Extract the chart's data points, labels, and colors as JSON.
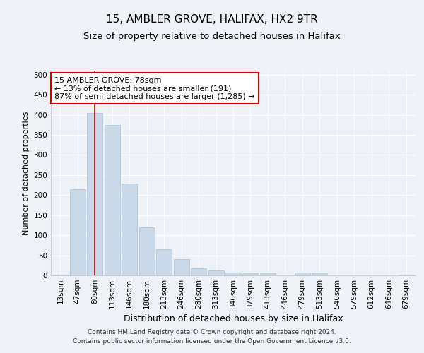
{
  "title1": "15, AMBLER GROVE, HALIFAX, HX2 9TR",
  "title2": "Size of property relative to detached houses in Halifax",
  "xlabel": "Distribution of detached houses by size in Halifax",
  "ylabel": "Number of detached properties",
  "categories": [
    "13sqm",
    "47sqm",
    "80sqm",
    "113sqm",
    "146sqm",
    "180sqm",
    "213sqm",
    "246sqm",
    "280sqm",
    "313sqm",
    "346sqm",
    "379sqm",
    "413sqm",
    "446sqm",
    "479sqm",
    "513sqm",
    "546sqm",
    "579sqm",
    "612sqm",
    "646sqm",
    "679sqm"
  ],
  "values": [
    2,
    215,
    405,
    375,
    228,
    120,
    65,
    40,
    18,
    12,
    7,
    5,
    5,
    0,
    7,
    6,
    0,
    0,
    0,
    0,
    2
  ],
  "bar_color": "#c9d9e8",
  "bar_edge_color": "#a8c0d6",
  "property_line_x": 2,
  "property_line_color": "#cc0000",
  "annotation_line1": "15 AMBLER GROVE: 78sqm",
  "annotation_line2": "← 13% of detached houses are smaller (191)",
  "annotation_line3": "87% of semi-detached houses are larger (1,285) →",
  "annotation_box_color": "#ffffff",
  "annotation_box_edge_color": "#cc0000",
  "ylim": [
    0,
    510
  ],
  "yticks": [
    0,
    50,
    100,
    150,
    200,
    250,
    300,
    350,
    400,
    450,
    500
  ],
  "background_color": "#eef2f7",
  "plot_background": "#eef2f7",
  "footer_line1": "Contains HM Land Registry data © Crown copyright and database right 2024.",
  "footer_line2": "Contains public sector information licensed under the Open Government Licence v3.0.",
  "title1_fontsize": 11,
  "title2_fontsize": 9.5,
  "xlabel_fontsize": 9,
  "ylabel_fontsize": 8,
  "tick_fontsize": 7.5,
  "annotation_fontsize": 8,
  "footer_fontsize": 6.5
}
